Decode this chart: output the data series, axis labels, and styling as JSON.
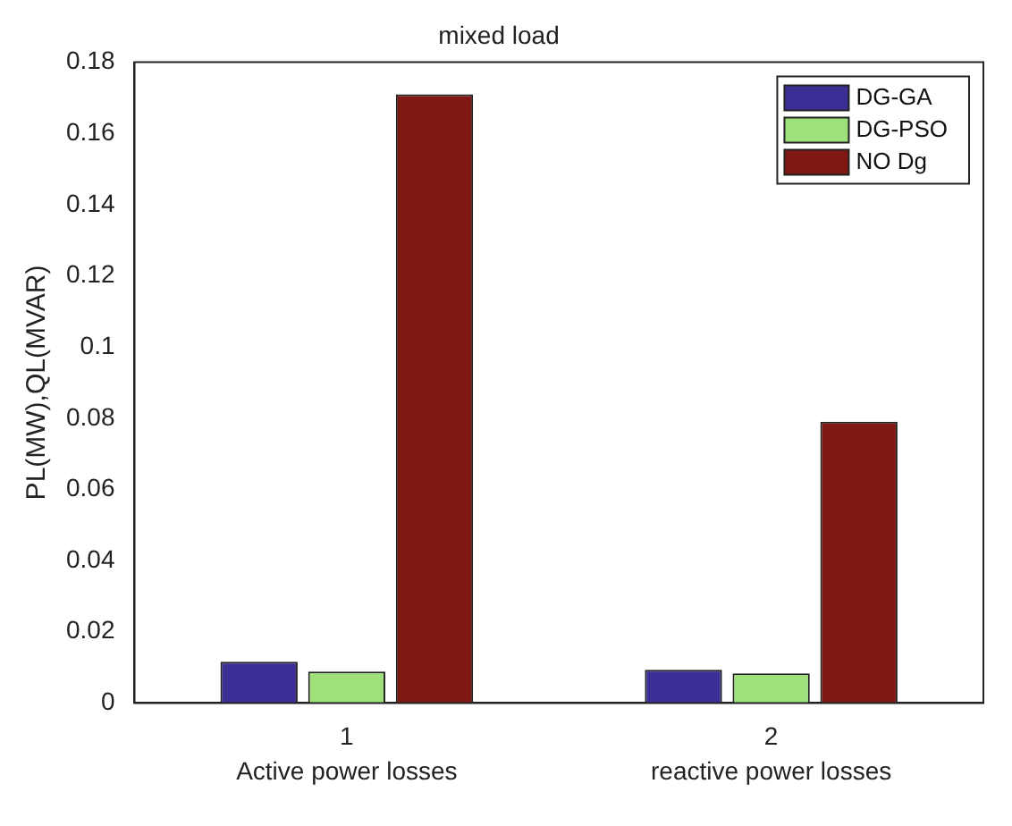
{
  "chart_data": {
    "type": "bar",
    "title": "mixed load",
    "ylabel": "PL(MW),QL(MVAR)",
    "categories": [
      "1",
      "2"
    ],
    "series": [
      {
        "name": "DG-GA",
        "color": "#3b2f96",
        "values": [
          0.0116,
          0.0093
        ]
      },
      {
        "name": "DG-PSO",
        "color": "#9ee07a",
        "values": [
          0.0088,
          0.0083
        ]
      },
      {
        "name": "NO Dg",
        "color": "#7f1813",
        "values": [
          0.171,
          0.079
        ]
      }
    ],
    "ylim": [
      0,
      0.18
    ],
    "yticks": [
      0,
      0.02,
      0.04,
      0.06,
      0.08,
      0.1,
      0.12,
      0.14,
      0.16,
      0.18
    ],
    "grid": false,
    "legend": "top right",
    "annotations": [
      "Active power losses",
      "reactive power losses"
    ]
  }
}
